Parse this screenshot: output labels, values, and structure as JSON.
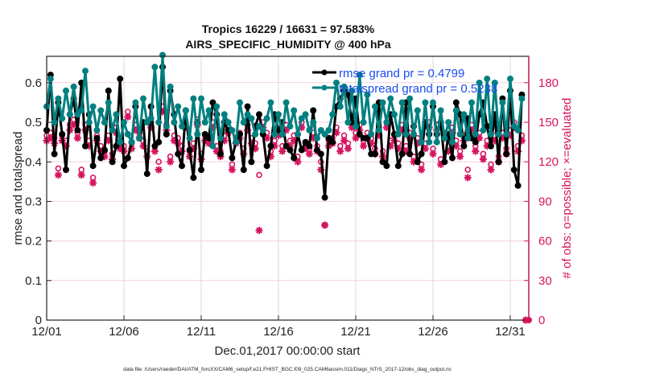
{
  "chart_data": {
    "type": "line",
    "title": [
      "Tropics 16229 / 16631 = 97.583%",
      "AIRS_SPECIFIC_HUMIDITY @ 400 hPa"
    ],
    "xlabel": "Dec.01,2017 00:00:00 start",
    "ylabel": "rmse and totalspread",
    "y2label": "# of obs: o=possible; ×=evaluated",
    "footer": "data file: /Users/raeder/DAI/ATM_forcXX/CAM6_setup/f.e21.FHIST_BGC.f09_025.CAM6assim.011/Diags_NTrS_2017-12/obs_diag_output.nc",
    "x_tick_labels": [
      "12/01",
      "12/06",
      "12/11",
      "12/16",
      "12/21",
      "12/26",
      "12/31"
    ],
    "x_tick_days": [
      1,
      6,
      11,
      16,
      21,
      26,
      31
    ],
    "xlim_days": [
      1,
      32.2
    ],
    "ylim": [
      0,
      0.667
    ],
    "y_ticks": [
      0,
      0.1,
      0.2,
      0.3,
      0.4,
      0.5,
      0.6
    ],
    "y_tick_labels": [
      "0",
      "0.1",
      "0.2",
      "0.3",
      "0.4",
      "0.5",
      "0.6"
    ],
    "y2lim": [
      0,
      200
    ],
    "y2_ticks": [
      0,
      30,
      60,
      90,
      120,
      150,
      180
    ],
    "y2_tick_labels": [
      "0",
      "30",
      "60",
      "90",
      "120",
      "150",
      "180"
    ],
    "grid": true,
    "legend_position": "top-right",
    "colors": {
      "rmse": "#000000",
      "totalspread": "#008080",
      "obs": "#d6145f",
      "legend_text": "#1a4cf0",
      "grid_v": "#d9d9d9",
      "grid_h": "#f2cfe0"
    },
    "series": [
      {
        "name": "rmse grand pr = 0.4799",
        "axis": "left",
        "step_days": 0.25,
        "values": [
          0.48,
          0.62,
          0.42,
          0.55,
          0.47,
          0.38,
          0.52,
          0.56,
          0.48,
          0.6,
          0.44,
          0.52,
          0.39,
          0.46,
          0.41,
          0.43,
          0.58,
          0.4,
          0.44,
          0.61,
          0.39,
          0.41,
          0.45,
          0.54,
          0.46,
          0.5,
          0.37,
          0.54,
          0.44,
          0.45,
          0.64,
          0.47,
          0.58,
          0.52,
          0.42,
          0.39,
          0.53,
          0.43,
          0.36,
          0.5,
          0.38,
          0.47,
          0.46,
          0.55,
          0.52,
          0.42,
          0.5,
          0.48,
          0.41,
          0.45,
          0.47,
          0.38,
          0.54,
          0.4,
          0.49,
          0.52,
          0.47,
          0.39,
          0.44,
          0.52,
          0.48,
          0.5,
          0.44,
          0.43,
          0.41,
          0.47,
          0.43,
          0.45,
          0.44,
          0.53,
          0.43,
          0.42,
          0.31,
          0.46,
          0.45,
          0.54,
          0.56,
          0.58,
          0.57,
          0.5,
          0.56,
          0.47,
          0.46,
          0.46,
          0.42,
          0.42,
          0.55,
          0.4,
          0.39,
          0.52,
          0.47,
          0.39,
          0.42,
          0.55,
          0.42,
          0.49,
          0.4,
          0.42,
          0.5,
          0.47,
          0.54,
          0.47,
          0.5,
          0.4,
          0.47,
          0.41,
          0.55,
          0.52,
          0.44,
          0.51,
          0.46,
          0.45,
          0.52,
          0.55,
          0.49,
          0.44,
          0.52,
          0.4,
          0.56,
          0.42,
          0.58,
          0.38,
          0.34,
          0.57
        ]
      },
      {
        "name": "totalspread grand pr = 0.5238",
        "axis": "left",
        "step_days": 0.25,
        "values": [
          0.54,
          0.61,
          0.5,
          0.56,
          0.51,
          0.58,
          0.52,
          0.59,
          0.52,
          0.53,
          0.63,
          0.5,
          0.54,
          0.48,
          0.53,
          0.5,
          0.55,
          0.48,
          0.52,
          0.45,
          0.5,
          0.47,
          0.45,
          0.55,
          0.46,
          0.56,
          0.5,
          0.51,
          0.64,
          0.5,
          0.67,
          0.49,
          0.59,
          0.5,
          0.54,
          0.49,
          0.53,
          0.46,
          0.56,
          0.47,
          0.56,
          0.5,
          0.53,
          0.44,
          0.54,
          0.46,
          0.52,
          0.5,
          0.48,
          0.45,
          0.55,
          0.5,
          0.52,
          0.51,
          0.47,
          0.49,
          0.48,
          0.51,
          0.55,
          0.47,
          0.52,
          0.47,
          0.55,
          0.49,
          0.53,
          0.47,
          0.51,
          0.52,
          0.48,
          0.5,
          0.46,
          0.48,
          0.47,
          0.48,
          0.52,
          0.6,
          0.54,
          0.59,
          0.5,
          0.58,
          0.49,
          0.62,
          0.5,
          0.57,
          0.47,
          0.54,
          0.48,
          0.55,
          0.5,
          0.56,
          0.52,
          0.47,
          0.55,
          0.47,
          0.56,
          0.47,
          0.53,
          0.45,
          0.55,
          0.45,
          0.55,
          0.45,
          0.53,
          0.46,
          0.5,
          0.45,
          0.53,
          0.47,
          0.52,
          0.46,
          0.55,
          0.47,
          0.6,
          0.48,
          0.61,
          0.47,
          0.6,
          0.47,
          0.55,
          0.47,
          0.61,
          0.49,
          0.48,
          0.56
        ]
      },
      {
        "name": "obs possible",
        "axis": "right",
        "marker": "o",
        "step_days": 0.25,
        "values": [
          140,
          142,
          138,
          115,
          140,
          136,
          148,
          152,
          142,
          114,
          148,
          136,
          108,
          140,
          132,
          128,
          140,
          126,
          146,
          134,
          132,
          158,
          134,
          148,
          142,
          136,
          128,
          150,
          132,
          120,
          162,
          148,
          124,
          140,
          138,
          132,
          150,
          128,
          134,
          152,
          126,
          140,
          138,
          150,
          132,
          128,
          140,
          146,
          118,
          138,
          142,
          130,
          148,
          138,
          134,
          110,
          150,
          142,
          128,
          136,
          144,
          132,
          148,
          136,
          140,
          124,
          150,
          134,
          130,
          142,
          132,
          120,
          72,
          136,
          138,
          146,
          132,
          140,
          134,
          150,
          142,
          148,
          136,
          142,
          138,
          130,
          144,
          128,
          150,
          136,
          140,
          134,
          148,
          132,
          142,
          124,
          138,
          118,
          134,
          150,
          130,
          148,
          122,
          142,
          132,
          146,
          136,
          128,
          140,
          114,
          148,
          132,
          142,
          126,
          136,
          118,
          140,
          124,
          142,
          130,
          144,
          150,
          132,
          140,
          0
        ]
      },
      {
        "name": "obs evaluated",
        "axis": "right",
        "marker": "x",
        "step_days": 0.25,
        "values": [
          136,
          138,
          134,
          110,
          136,
          132,
          144,
          148,
          138,
          110,
          144,
          132,
          104,
          136,
          128,
          124,
          136,
          122,
          142,
          130,
          128,
          154,
          130,
          144,
          138,
          132,
          124,
          146,
          128,
          114,
          158,
          144,
          120,
          136,
          134,
          128,
          146,
          124,
          130,
          148,
          122,
          136,
          134,
          146,
          128,
          124,
          136,
          142,
          114,
          134,
          138,
          126,
          144,
          134,
          130,
          68,
          146,
          138,
          124,
          132,
          140,
          128,
          144,
          132,
          136,
          120,
          146,
          130,
          126,
          138,
          128,
          114,
          72,
          132,
          134,
          142,
          128,
          136,
          130,
          146,
          138,
          144,
          132,
          138,
          134,
          126,
          140,
          124,
          146,
          132,
          136,
          130,
          144,
          128,
          138,
          120,
          134,
          114,
          130,
          146,
          126,
          144,
          118,
          138,
          128,
          142,
          132,
          124,
          136,
          108,
          144,
          128,
          138,
          122,
          132,
          114,
          136,
          120,
          138,
          126,
          140,
          146,
          128,
          136,
          0
        ]
      }
    ]
  }
}
